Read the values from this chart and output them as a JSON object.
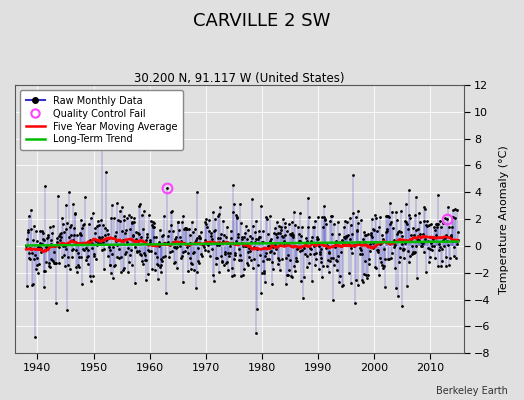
{
  "title": "CARVILLE 2 SW",
  "subtitle": "30.200 N, 91.117 W (United States)",
  "ylabel": "Temperature Anomaly (°C)",
  "attribution": "Berkeley Earth",
  "xlim": [
    1936,
    2016
  ],
  "ylim": [
    -8,
    12
  ],
  "yticks": [
    -8,
    -6,
    -4,
    -2,
    0,
    2,
    4,
    6,
    8,
    10,
    12
  ],
  "xticks": [
    1940,
    1950,
    1960,
    1970,
    1980,
    1990,
    2000,
    2010
  ],
  "raw_color": "#3333cc",
  "avg_color": "#ff0000",
  "trend_color": "#00bb00",
  "qc_color": "#ff44ff",
  "bg_color": "#e0e0e0",
  "seed": 17,
  "start_year": 1938,
  "end_year": 2015
}
